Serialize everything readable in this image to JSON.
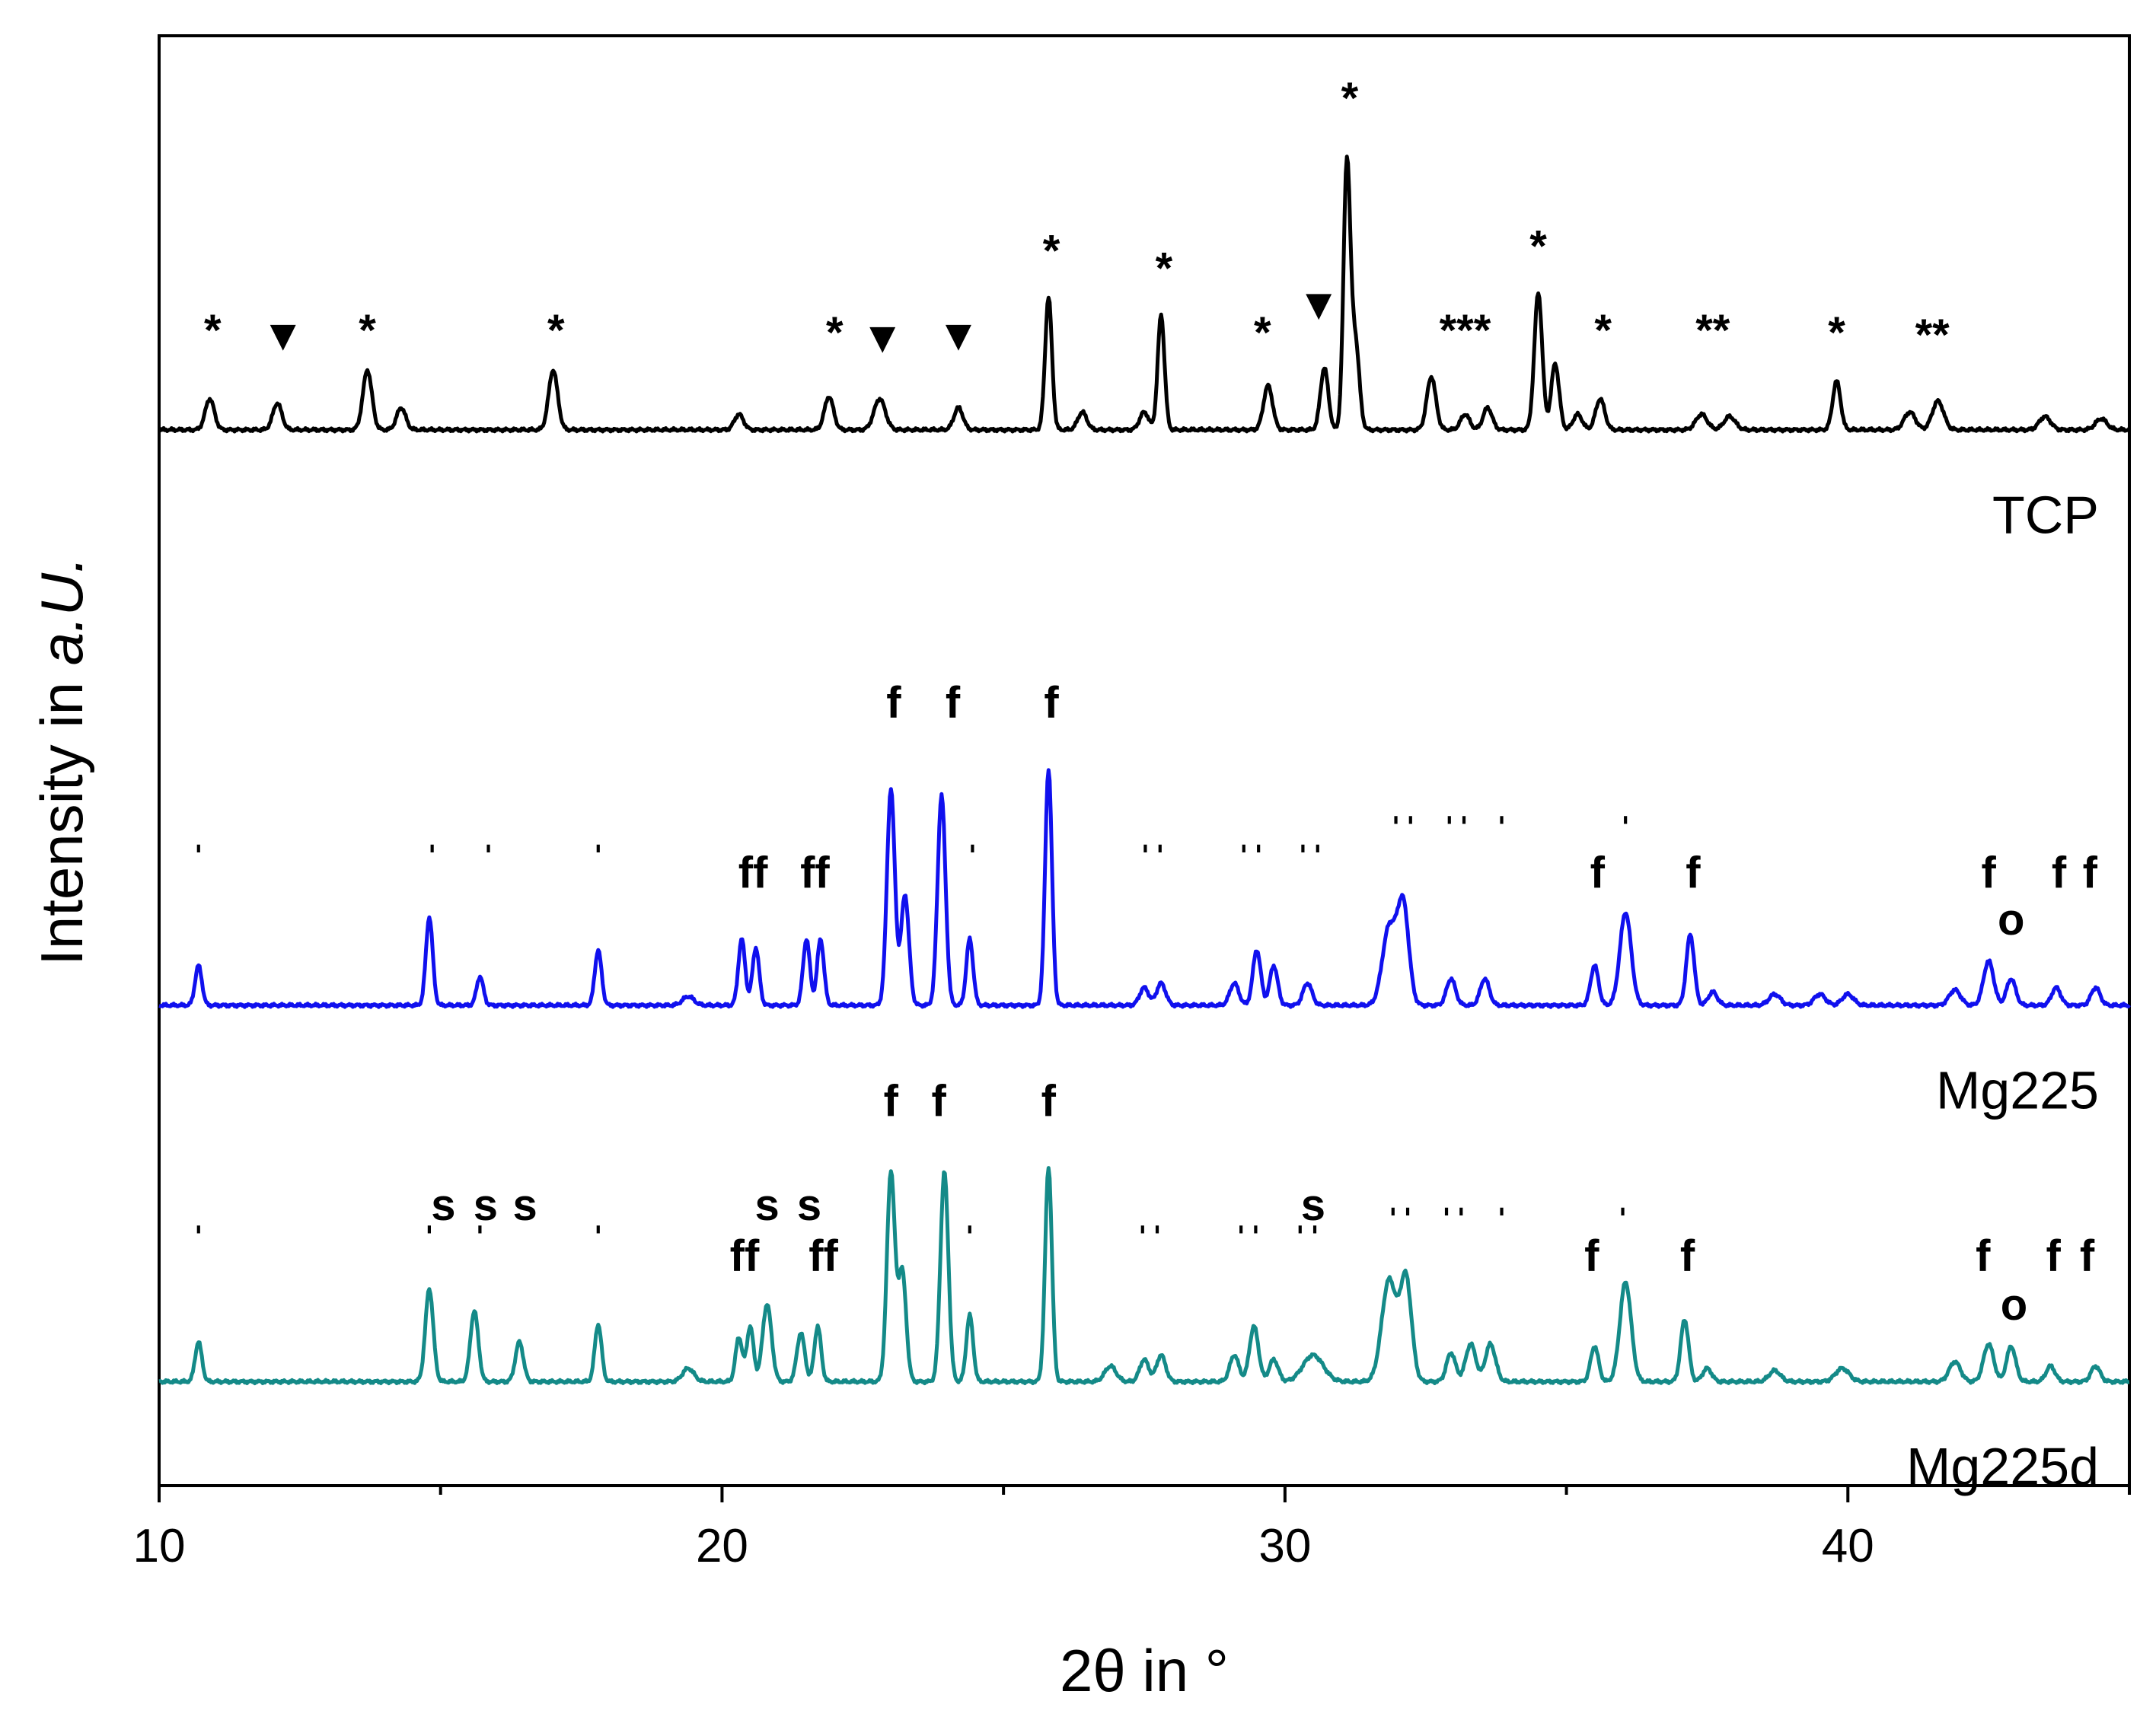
{
  "chart_data": {
    "type": "line",
    "xlabel": "2θ in °",
    "ylabel_prefix": "Intensity in ",
    "ylabel_italic": "a.U.",
    "xlim": [
      10,
      45
    ],
    "x_ticks": [
      10,
      20,
      30,
      40
    ],
    "x_minor_ticks": [
      15,
      25,
      35,
      45
    ],
    "y_ticks": [],
    "grid": false,
    "series": [
      {
        "name": "TCP",
        "color": "#000000",
        "offset": 4.6,
        "baseline": 0.02,
        "peaks": [
          [
            10.9,
            0.14,
            0.08
          ],
          [
            12.1,
            0.12,
            0.08
          ],
          [
            13.7,
            0.27,
            0.08
          ],
          [
            14.3,
            0.1,
            0.08
          ],
          [
            17.0,
            0.27,
            0.08
          ],
          [
            20.3,
            0.07,
            0.08
          ],
          [
            21.9,
            0.15,
            0.08
          ],
          [
            22.8,
            0.14,
            0.1
          ],
          [
            24.2,
            0.1,
            0.08
          ],
          [
            25.8,
            0.6,
            0.06
          ],
          [
            26.4,
            0.08,
            0.08
          ],
          [
            27.5,
            0.08,
            0.08
          ],
          [
            27.8,
            0.52,
            0.06
          ],
          [
            29.7,
            0.2,
            0.08
          ],
          [
            30.7,
            0.28,
            0.07
          ],
          [
            31.1,
            1.2,
            0.06
          ],
          [
            31.25,
            0.4,
            0.07
          ],
          [
            32.6,
            0.24,
            0.08
          ],
          [
            33.2,
            0.07,
            0.08
          ],
          [
            33.6,
            0.1,
            0.08
          ],
          [
            34.5,
            0.62,
            0.07
          ],
          [
            34.8,
            0.3,
            0.07
          ],
          [
            35.2,
            0.07,
            0.08
          ],
          [
            35.6,
            0.14,
            0.08
          ],
          [
            37.4,
            0.07,
            0.1
          ],
          [
            37.9,
            0.06,
            0.1
          ],
          [
            39.8,
            0.22,
            0.07
          ],
          [
            41.1,
            0.08,
            0.1
          ],
          [
            41.6,
            0.13,
            0.1
          ],
          [
            43.5,
            0.06,
            0.1
          ],
          [
            44.5,
            0.05,
            0.1
          ]
        ]
      },
      {
        "name": "Mg225",
        "color": "#1010ee",
        "offset": 2.0,
        "baseline": 0.02,
        "peaks": [
          [
            10.7,
            0.18,
            0.06
          ],
          [
            14.8,
            0.4,
            0.06
          ],
          [
            15.7,
            0.13,
            0.06
          ],
          [
            17.8,
            0.25,
            0.06
          ],
          [
            19.4,
            0.04,
            0.1
          ],
          [
            20.35,
            0.3,
            0.06
          ],
          [
            20.6,
            0.26,
            0.06
          ],
          [
            21.5,
            0.3,
            0.06
          ],
          [
            21.75,
            0.3,
            0.06
          ],
          [
            23.0,
            0.98,
            0.07
          ],
          [
            23.25,
            0.5,
            0.07
          ],
          [
            23.9,
            0.95,
            0.07
          ],
          [
            24.4,
            0.3,
            0.06
          ],
          [
            25.8,
            1.07,
            0.06
          ],
          [
            27.5,
            0.08,
            0.08
          ],
          [
            27.8,
            0.1,
            0.08
          ],
          [
            29.1,
            0.1,
            0.08
          ],
          [
            29.5,
            0.25,
            0.07
          ],
          [
            29.8,
            0.18,
            0.07
          ],
          [
            30.4,
            0.1,
            0.08
          ],
          [
            31.85,
            0.35,
            0.12
          ],
          [
            32.1,
            0.45,
            0.1
          ],
          [
            32.95,
            0.12,
            0.08
          ],
          [
            33.55,
            0.12,
            0.08
          ],
          [
            35.5,
            0.18,
            0.07
          ],
          [
            36.05,
            0.42,
            0.1
          ],
          [
            37.2,
            0.32,
            0.07
          ],
          [
            37.6,
            0.06,
            0.08
          ],
          [
            38.7,
            0.05,
            0.1
          ],
          [
            39.5,
            0.05,
            0.1
          ],
          [
            40.0,
            0.05,
            0.1
          ],
          [
            41.9,
            0.07,
            0.1
          ],
          [
            42.5,
            0.2,
            0.09
          ],
          [
            42.9,
            0.12,
            0.08
          ],
          [
            43.7,
            0.08,
            0.08
          ],
          [
            44.4,
            0.08,
            0.08
          ]
        ]
      },
      {
        "name": "Mg225d",
        "color": "#148a88",
        "offset": 0.3,
        "baseline": 0.02,
        "peaks": [
          [
            10.7,
            0.18,
            0.06
          ],
          [
            14.8,
            0.42,
            0.07
          ],
          [
            15.6,
            0.32,
            0.07
          ],
          [
            16.4,
            0.18,
            0.07
          ],
          [
            17.8,
            0.26,
            0.06
          ],
          [
            19.4,
            0.06,
            0.1
          ],
          [
            20.3,
            0.2,
            0.06
          ],
          [
            20.5,
            0.25,
            0.06
          ],
          [
            20.8,
            0.35,
            0.08
          ],
          [
            21.4,
            0.22,
            0.07
          ],
          [
            21.7,
            0.25,
            0.06
          ],
          [
            23.0,
            0.95,
            0.07
          ],
          [
            23.2,
            0.5,
            0.07
          ],
          [
            23.95,
            0.95,
            0.07
          ],
          [
            24.4,
            0.3,
            0.06
          ],
          [
            25.8,
            0.97,
            0.06
          ],
          [
            26.9,
            0.07,
            0.1
          ],
          [
            27.5,
            0.1,
            0.08
          ],
          [
            27.8,
            0.12,
            0.08
          ],
          [
            29.1,
            0.12,
            0.08
          ],
          [
            29.45,
            0.25,
            0.08
          ],
          [
            29.8,
            0.1,
            0.08
          ],
          [
            30.5,
            0.12,
            0.18
          ],
          [
            31.85,
            0.46,
            0.13
          ],
          [
            32.15,
            0.46,
            0.1
          ],
          [
            32.95,
            0.13,
            0.08
          ],
          [
            33.3,
            0.17,
            0.09
          ],
          [
            33.65,
            0.17,
            0.09
          ],
          [
            35.5,
            0.16,
            0.07
          ],
          [
            36.05,
            0.45,
            0.1
          ],
          [
            37.1,
            0.28,
            0.07
          ],
          [
            37.5,
            0.06,
            0.08
          ],
          [
            38.7,
            0.05,
            0.1
          ],
          [
            39.9,
            0.06,
            0.12
          ],
          [
            41.9,
            0.09,
            0.1
          ],
          [
            42.5,
            0.17,
            0.09
          ],
          [
            42.9,
            0.16,
            0.08
          ],
          [
            43.6,
            0.07,
            0.08
          ],
          [
            44.4,
            0.07,
            0.08
          ]
        ]
      }
    ],
    "annotations": [
      {
        "text": "*",
        "x": 10.95,
        "y": 5.0
      },
      {
        "text": "▼",
        "x": 12.2,
        "y": 4.98
      },
      {
        "text": "*",
        "x": 13.7,
        "y": 5.0
      },
      {
        "text": "*",
        "x": 17.05,
        "y": 5.0
      },
      {
        "text": "*",
        "x": 22.0,
        "y": 4.99
      },
      {
        "text": "▼",
        "x": 22.85,
        "y": 4.97
      },
      {
        "text": "▼",
        "x": 24.2,
        "y": 4.98
      },
      {
        "text": "*",
        "x": 25.85,
        "y": 5.36
      },
      {
        "text": "*",
        "x": 27.85,
        "y": 5.28
      },
      {
        "text": "*",
        "x": 29.6,
        "y": 4.99
      },
      {
        "text": "▼",
        "x": 30.6,
        "y": 5.12
      },
      {
        "text": "*",
        "x": 31.15,
        "y": 6.05
      },
      {
        "text": "***",
        "x": 33.2,
        "y": 5.0
      },
      {
        "text": "*",
        "x": 34.5,
        "y": 5.38
      },
      {
        "text": "*",
        "x": 35.65,
        "y": 5.0
      },
      {
        "text": "**",
        "x": 37.6,
        "y": 5.0
      },
      {
        "text": "*",
        "x": 39.8,
        "y": 4.99
      },
      {
        "text": "**",
        "x": 41.5,
        "y": 4.98
      },
      {
        "text": "f",
        "x": 23.05,
        "y": 3.32
      },
      {
        "text": "f",
        "x": 24.1,
        "y": 3.32
      },
      {
        "text": "f",
        "x": 25.85,
        "y": 3.32
      },
      {
        "text": "ˈ",
        "x": 10.7,
        "y": 2.6
      },
      {
        "text": "ˈ",
        "x": 14.85,
        "y": 2.6
      },
      {
        "text": "ˈ",
        "x": 15.85,
        "y": 2.6
      },
      {
        "text": "ˈ",
        "x": 17.8,
        "y": 2.6
      },
      {
        "text": "ff",
        "x": 20.55,
        "y": 2.55
      },
      {
        "text": "ff",
        "x": 21.65,
        "y": 2.55
      },
      {
        "text": "ˈ",
        "x": 24.45,
        "y": 2.6
      },
      {
        "text": "ˈˈ",
        "x": 27.65,
        "y": 2.6
      },
      {
        "text": "ˈˈ",
        "x": 29.4,
        "y": 2.6
      },
      {
        "text": "ˈˈ",
        "x": 30.45,
        "y": 2.6
      },
      {
        "text": "ˈˈ",
        "x": 32.1,
        "y": 2.73
      },
      {
        "text": "ˈˈ",
        "x": 33.05,
        "y": 2.73
      },
      {
        "text": "ˈ",
        "x": 33.85,
        "y": 2.73
      },
      {
        "text": "f",
        "x": 35.55,
        "y": 2.55
      },
      {
        "text": "ˈ",
        "x": 36.05,
        "y": 2.73
      },
      {
        "text": "f",
        "x": 37.25,
        "y": 2.55
      },
      {
        "text": "f",
        "x": 42.5,
        "y": 2.55
      },
      {
        "text": "o",
        "x": 42.9,
        "y": 2.34
      },
      {
        "text": "f",
        "x": 43.75,
        "y": 2.55
      },
      {
        "text": "f",
        "x": 44.3,
        "y": 2.55
      },
      {
        "text": "f",
        "x": 23.0,
        "y": 1.52
      },
      {
        "text": "f",
        "x": 23.85,
        "y": 1.52
      },
      {
        "text": "f",
        "x": 25.8,
        "y": 1.52
      },
      {
        "text": "ˈ",
        "x": 10.7,
        "y": 0.88
      },
      {
        "text": "s",
        "x": 15.05,
        "y": 1.05
      },
      {
        "text": "ˈ",
        "x": 14.8,
        "y": 0.88
      },
      {
        "text": "s",
        "x": 15.8,
        "y": 1.05
      },
      {
        "text": "ˈ",
        "x": 15.7,
        "y": 0.88
      },
      {
        "text": "s",
        "x": 16.5,
        "y": 1.05
      },
      {
        "text": "ˈ",
        "x": 17.8,
        "y": 0.88
      },
      {
        "text": "s",
        "x": 20.8,
        "y": 1.05
      },
      {
        "text": "s",
        "x": 21.55,
        "y": 1.05
      },
      {
        "text": "ff",
        "x": 20.4,
        "y": 0.82
      },
      {
        "text": "ff",
        "x": 21.8,
        "y": 0.82
      },
      {
        "text": "ˈ",
        "x": 24.4,
        "y": 0.88
      },
      {
        "text": "ˈˈ",
        "x": 27.6,
        "y": 0.88
      },
      {
        "text": "ˈˈ",
        "x": 29.35,
        "y": 0.88
      },
      {
        "text": "ˈˈ",
        "x": 30.4,
        "y": 0.88
      },
      {
        "text": "s",
        "x": 30.5,
        "y": 1.05
      },
      {
        "text": "ˈˈ",
        "x": 32.05,
        "y": 0.96
      },
      {
        "text": "ˈˈ",
        "x": 33.0,
        "y": 0.96
      },
      {
        "text": "ˈ",
        "x": 33.85,
        "y": 0.96
      },
      {
        "text": "f",
        "x": 35.45,
        "y": 0.82
      },
      {
        "text": "ˈ",
        "x": 36.0,
        "y": 0.96
      },
      {
        "text": "f",
        "x": 37.15,
        "y": 0.82
      },
      {
        "text": "f",
        "x": 42.4,
        "y": 0.82
      },
      {
        "text": "o",
        "x": 42.95,
        "y": 0.6
      },
      {
        "text": "f",
        "x": 43.65,
        "y": 0.82
      },
      {
        "text": "f",
        "x": 44.25,
        "y": 0.82
      }
    ],
    "ylim": [
      -0.15,
      6.4
    ]
  }
}
